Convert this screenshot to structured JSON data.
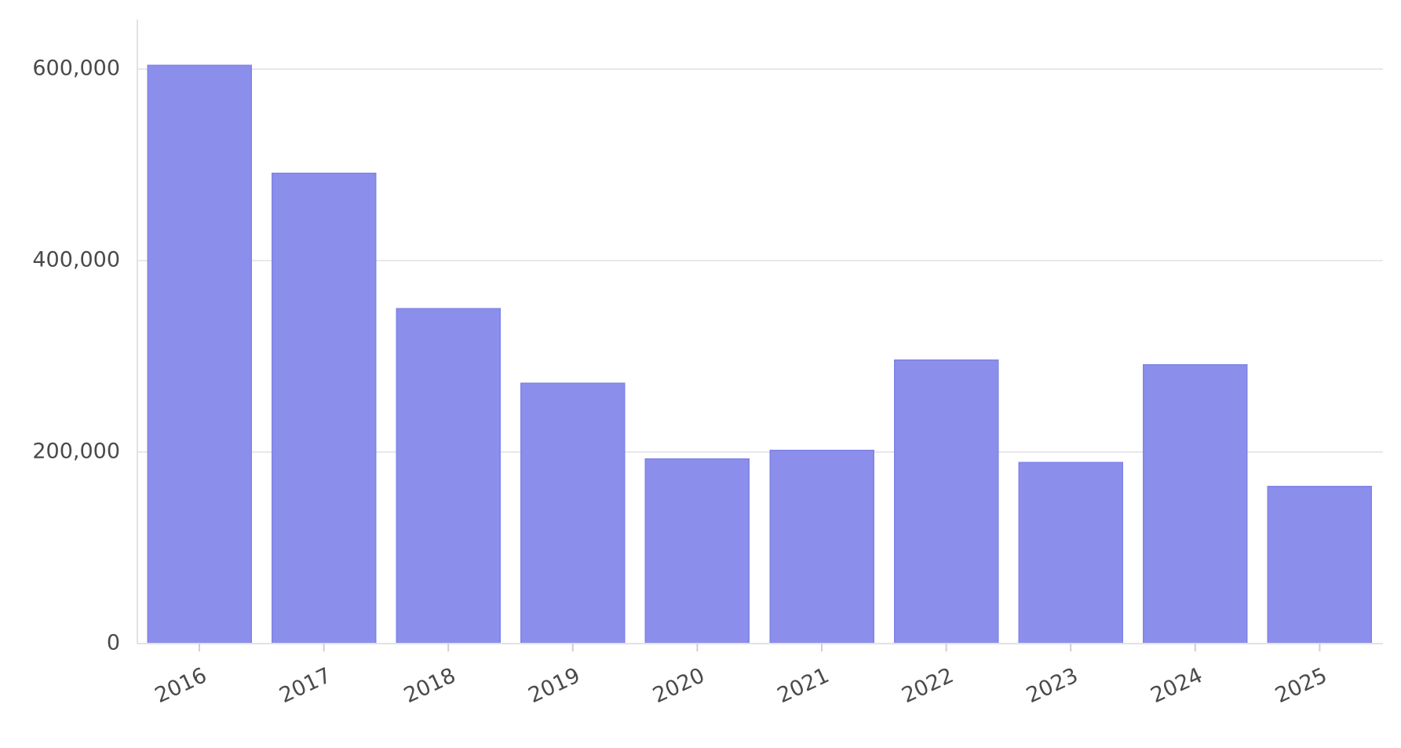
{
  "chart_data": {
    "type": "bar",
    "categories": [
      "2016",
      "2017",
      "2018",
      "2019",
      "2020",
      "2021",
      "2022",
      "2023",
      "2024",
      "2025"
    ],
    "values": [
      604000,
      491000,
      350000,
      272000,
      193000,
      202000,
      296000,
      189000,
      291000,
      164000
    ],
    "ylim": [
      0,
      650000
    ],
    "yticks": [
      0,
      200000,
      400000,
      600000
    ],
    "ytick_labels": [
      "0",
      "200,000",
      "400,000",
      "600,000"
    ],
    "grid": true,
    "legend": "none"
  },
  "colors": {
    "bar": "#8b8feb",
    "bar_stroke": "#7f83e6",
    "grid": "#e8e8ec",
    "text": "#4a4a4a"
  }
}
